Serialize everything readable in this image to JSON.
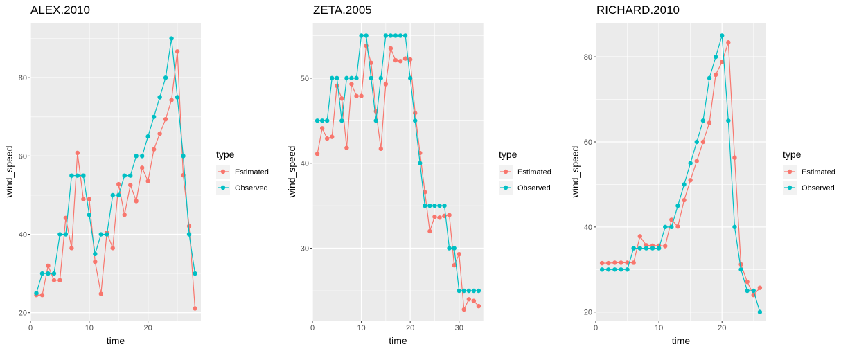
{
  "colors": {
    "Estimated": "#F8766D",
    "Observed": "#00BFC4",
    "panel_bg": "#EBEBEB",
    "grid": "#FFFFFF"
  },
  "legend": {
    "title": "type",
    "labels": [
      "Estimated",
      "Observed"
    ]
  },
  "chart_data": [
    {
      "type": "line",
      "title": "ALEX.2010",
      "xlabel": "time",
      "ylabel": "wind_speed",
      "xlim": [
        0,
        29
      ],
      "ylim": [
        18,
        94
      ],
      "xticks": [
        0,
        10,
        20
      ],
      "yticks": [
        20,
        40,
        60,
        80
      ],
      "series": [
        {
          "name": "Estimated",
          "x": [
            1,
            2,
            3,
            4,
            5,
            6,
            7,
            8,
            9,
            10,
            11,
            12,
            13,
            14,
            15,
            16,
            17,
            18,
            19,
            20,
            21,
            22,
            23,
            24,
            25,
            26,
            27,
            28
          ],
          "values": [
            24.5,
            24.5,
            32,
            28.3,
            28.3,
            44.2,
            36.5,
            60.8,
            49,
            49,
            33,
            24.8,
            40.4,
            36.5,
            52.8,
            45,
            52.6,
            48.5,
            57,
            53.6,
            61.7,
            65.7,
            69.4,
            74.3,
            86.7,
            55.1,
            42.1,
            21.1
          ]
        },
        {
          "name": "Observed",
          "x": [
            1,
            2,
            3,
            4,
            5,
            6,
            7,
            8,
            9,
            10,
            11,
            12,
            13,
            14,
            15,
            16,
            17,
            18,
            19,
            20,
            21,
            22,
            23,
            24,
            25,
            26,
            27,
            28
          ],
          "values": [
            25,
            30,
            30,
            30,
            40,
            40,
            55,
            55,
            55,
            45,
            35,
            40,
            40,
            50,
            50,
            55,
            55,
            60,
            60,
            65,
            70,
            75,
            80,
            90,
            75,
            60,
            40,
            30
          ]
        }
      ]
    },
    {
      "type": "line",
      "title": "ZETA.2005",
      "xlabel": "time",
      "ylabel": "wind_speed",
      "xlim": [
        0,
        35
      ],
      "ylim": [
        21.5,
        56.5
      ],
      "xticks": [
        0,
        10,
        20,
        30
      ],
      "yticks": [
        30,
        40,
        50
      ],
      "series": [
        {
          "name": "Estimated",
          "x": [
            1,
            2,
            3,
            4,
            5,
            6,
            7,
            8,
            9,
            10,
            11,
            12,
            13,
            14,
            15,
            16,
            17,
            18,
            19,
            20,
            21,
            22,
            23,
            24,
            25,
            26,
            27,
            28,
            29,
            30,
            31,
            32,
            33,
            34
          ],
          "values": [
            41.1,
            44.1,
            42.9,
            43.1,
            49.1,
            47.6,
            41.8,
            49.3,
            47.9,
            47.9,
            53.8,
            51.8,
            46.1,
            41.7,
            49.3,
            53.5,
            52.1,
            52,
            52.3,
            52.2,
            45.9,
            41.2,
            36.6,
            32,
            33.7,
            33.6,
            33.8,
            33.9,
            28,
            29.3,
            22.8,
            24,
            23.8,
            23.2
          ]
        },
        {
          "name": "Observed",
          "x": [
            1,
            2,
            3,
            4,
            5,
            6,
            7,
            8,
            9,
            10,
            11,
            12,
            13,
            14,
            15,
            16,
            17,
            18,
            19,
            20,
            21,
            22,
            23,
            24,
            25,
            26,
            27,
            28,
            29,
            30,
            31,
            32,
            33,
            34
          ],
          "values": [
            45,
            45,
            45,
            50,
            50,
            45,
            50,
            50,
            50,
            55,
            55,
            50,
            45,
            50,
            55,
            55,
            55,
            55,
            55,
            50,
            45,
            40,
            35,
            35,
            35,
            35,
            35,
            30,
            30,
            25,
            25,
            25,
            25,
            25
          ]
        }
      ]
    },
    {
      "type": "line",
      "title": "RICHARD.2010",
      "xlabel": "time",
      "ylabel": "wind_speed",
      "xlim": [
        0,
        27
      ],
      "ylim": [
        18,
        88
      ],
      "xticks": [
        0,
        10,
        20
      ],
      "yticks": [
        20,
        40,
        60,
        80
      ],
      "series": [
        {
          "name": "Estimated",
          "x": [
            1,
            2,
            3,
            4,
            5,
            6,
            7,
            8,
            9,
            10,
            11,
            12,
            13,
            14,
            15,
            16,
            17,
            18,
            19,
            20,
            21,
            22,
            23,
            24,
            25,
            26
          ],
          "values": [
            31.5,
            31.5,
            31.6,
            31.6,
            31.6,
            31.6,
            37.8,
            35.7,
            35.6,
            35.6,
            35.5,
            41.7,
            40.1,
            46.3,
            51,
            55.5,
            60,
            64.5,
            75.8,
            78.8,
            83.4,
            56.3,
            31.2,
            27.1,
            24,
            25.7
          ]
        },
        {
          "name": "Observed",
          "x": [
            1,
            2,
            3,
            4,
            5,
            6,
            7,
            8,
            9,
            10,
            11,
            12,
            13,
            14,
            15,
            16,
            17,
            18,
            19,
            20,
            21,
            22,
            23,
            24,
            25,
            26
          ],
          "values": [
            30,
            30,
            30,
            30,
            30,
            35,
            35,
            35,
            35,
            35,
            40,
            40,
            45,
            50,
            55,
            60,
            65,
            75,
            80,
            85,
            65,
            40,
            30,
            25,
            25,
            20
          ]
        }
      ]
    }
  ]
}
